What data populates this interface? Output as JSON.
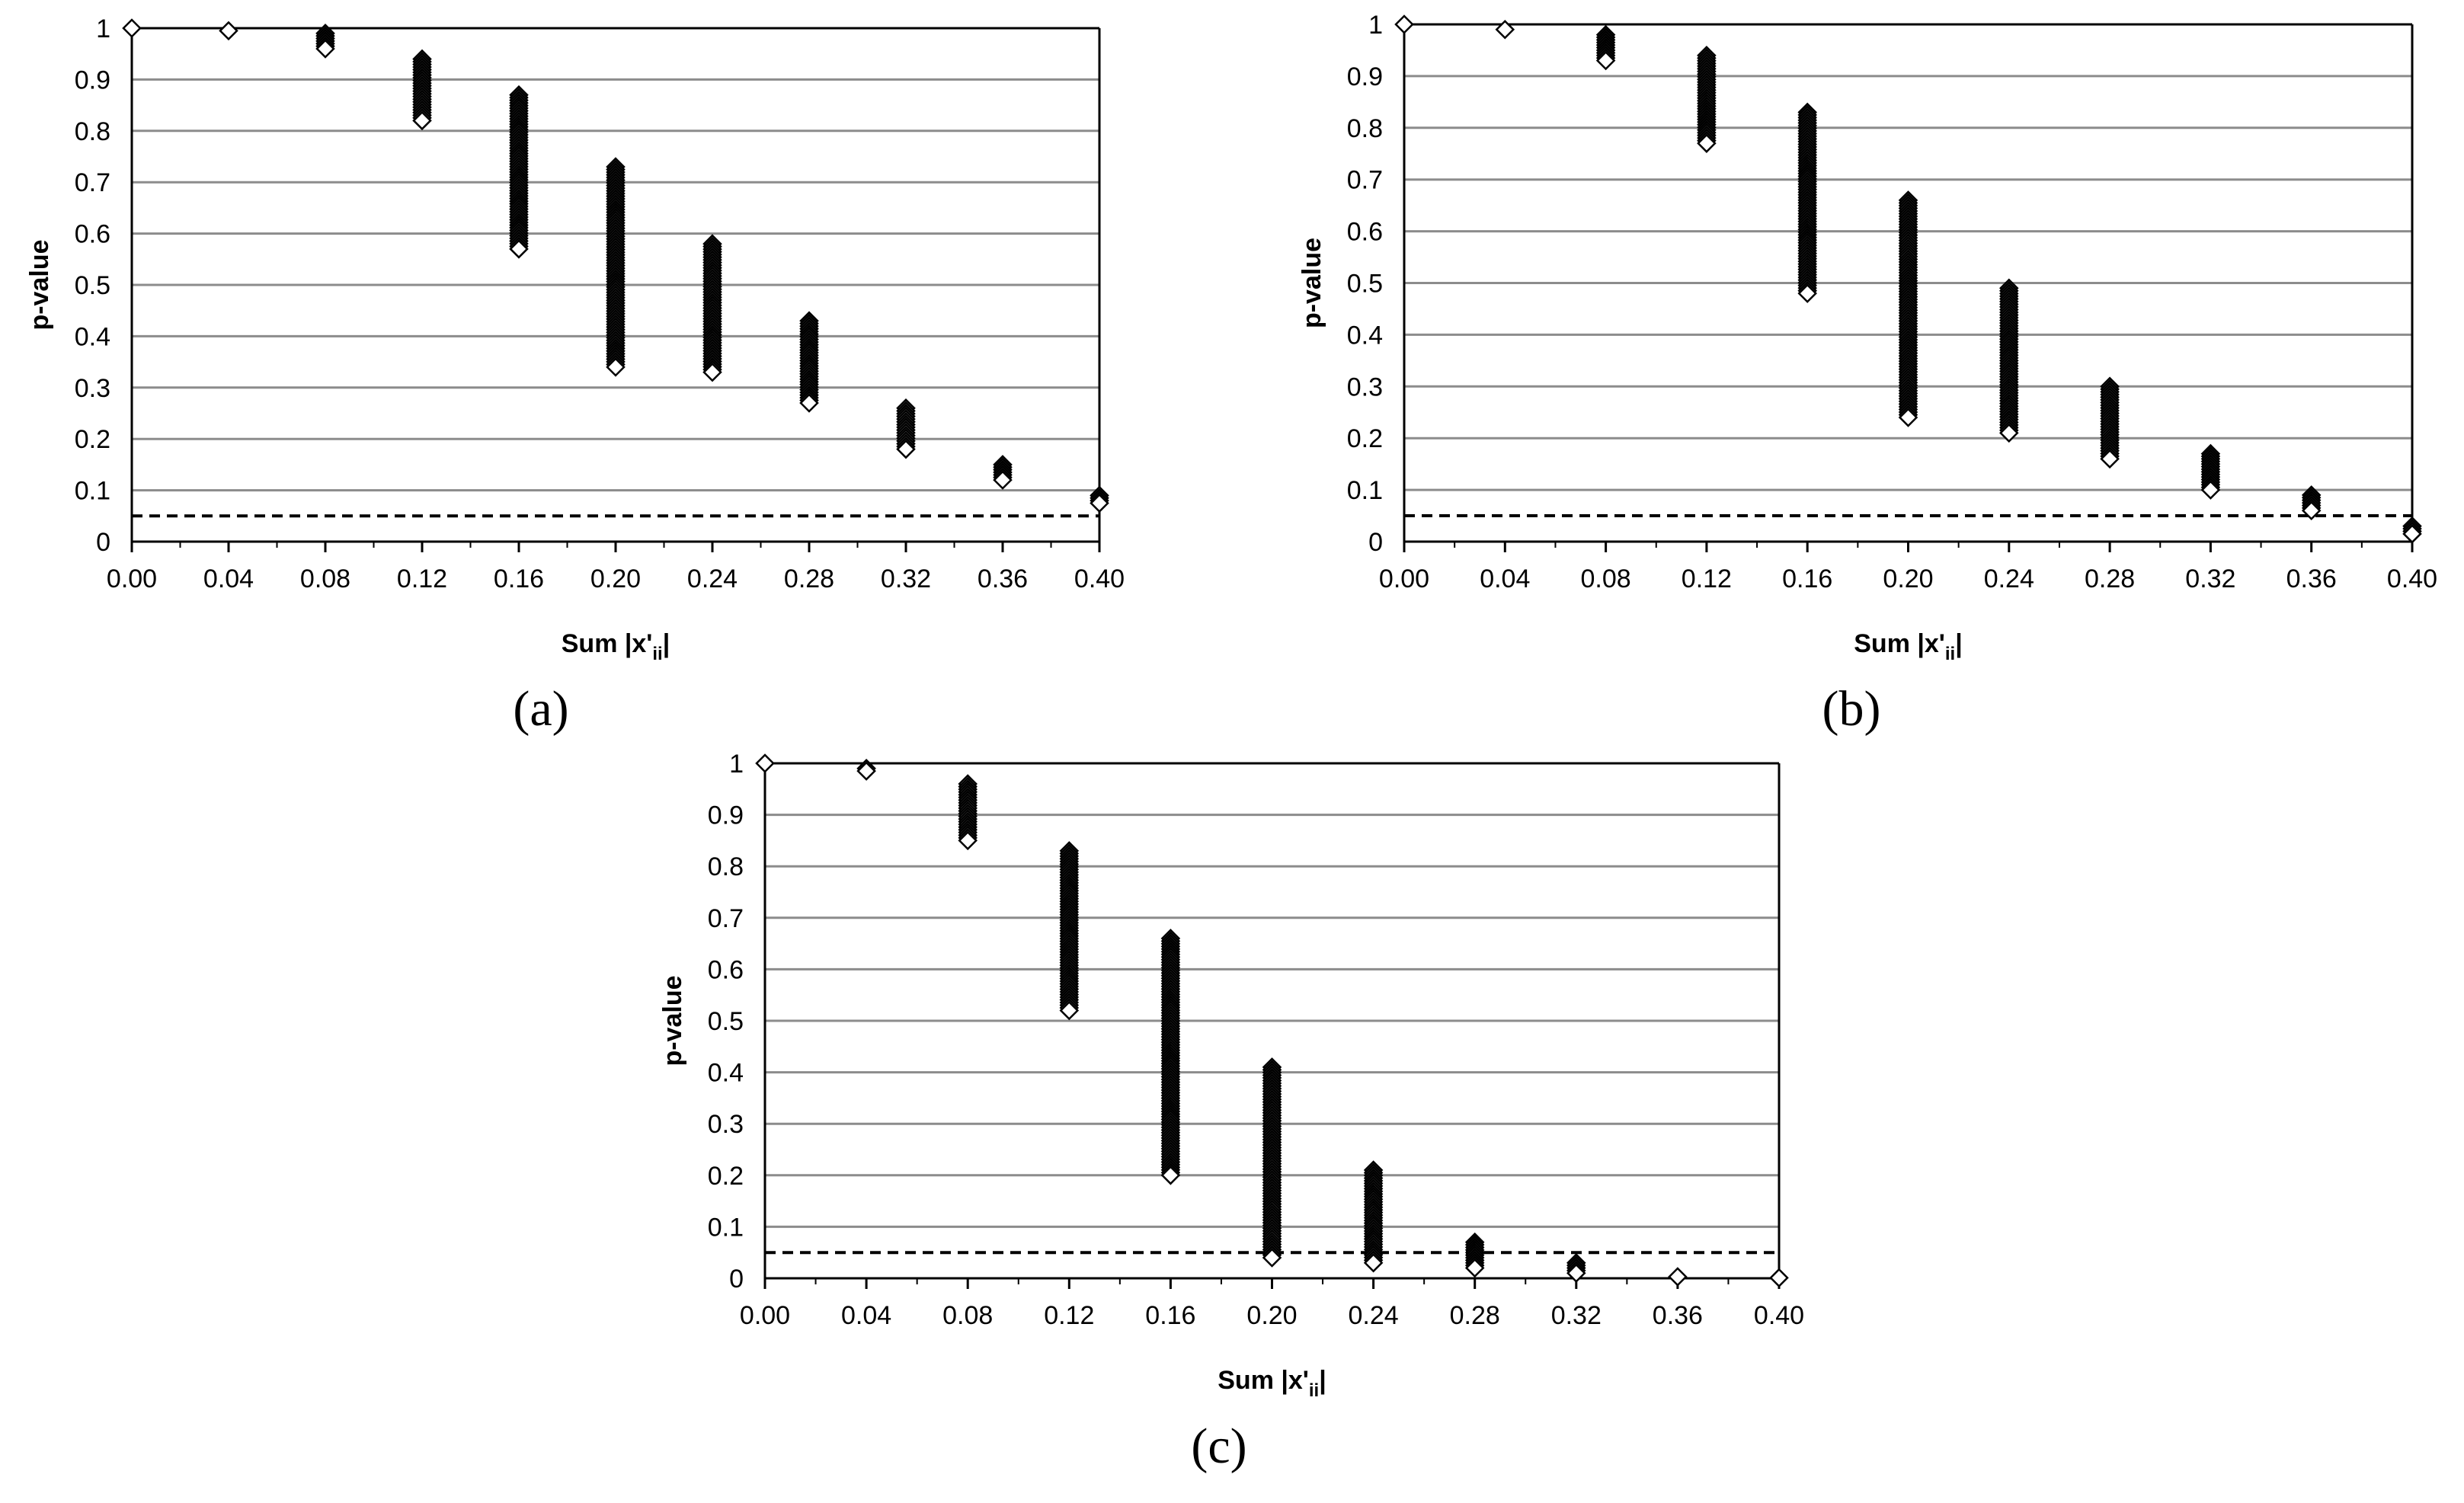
{
  "figure": {
    "panel_labels": [
      "(a)",
      "(b)",
      "(c)"
    ]
  },
  "chart_data": [
    {
      "type": "scatter",
      "panel": "(a)",
      "xlabel": "Sum |x'ii|",
      "xlabel_main": "Sum |x'",
      "xlabel_sub": "ii",
      "xlabel_end": "|",
      "ylabel": "p-value",
      "xlim": [
        0,
        0.4
      ],
      "ylim": [
        0,
        1
      ],
      "x_ticks": [
        "0.00",
        "0.04",
        "0.08",
        "0.12",
        "0.16",
        "0.20",
        "0.24",
        "0.28",
        "0.32",
        "0.36",
        "0.40"
      ],
      "y_ticks": [
        "0",
        "0.1",
        "0.2",
        "0.3",
        "0.4",
        "0.5",
        "0.6",
        "0.7",
        "0.8",
        "0.9",
        "1"
      ],
      "grid": true,
      "reference_line": 0.05,
      "points": [
        {
          "x": 0.0,
          "min": 1.0,
          "max": 1.0
        },
        {
          "x": 0.04,
          "min": 0.995,
          "max": 0.995
        },
        {
          "x": 0.08,
          "min": 0.96,
          "max": 0.99
        },
        {
          "x": 0.12,
          "min": 0.82,
          "max": 0.94
        },
        {
          "x": 0.16,
          "min": 0.57,
          "max": 0.87
        },
        {
          "x": 0.2,
          "min": 0.34,
          "max": 0.73
        },
        {
          "x": 0.24,
          "min": 0.33,
          "max": 0.58
        },
        {
          "x": 0.28,
          "min": 0.27,
          "max": 0.43
        },
        {
          "x": 0.32,
          "min": 0.18,
          "max": 0.26
        },
        {
          "x": 0.36,
          "min": 0.12,
          "max": 0.15
        },
        {
          "x": 0.4,
          "min": 0.075,
          "max": 0.09
        }
      ]
    },
    {
      "type": "scatter",
      "panel": "(b)",
      "xlabel": "Sum |x'ii|",
      "xlabel_main": "Sum |x'",
      "xlabel_sub": "ii",
      "xlabel_end": "|",
      "ylabel": "p-value",
      "xlim": [
        0,
        0.4
      ],
      "ylim": [
        0,
        1
      ],
      "x_ticks": [
        "0.00",
        "0.04",
        "0.08",
        "0.12",
        "0.16",
        "0.20",
        "0.24",
        "0.28",
        "0.32",
        "0.36",
        "0.40"
      ],
      "y_ticks": [
        "0",
        "0.1",
        "0.2",
        "0.3",
        "0.4",
        "0.5",
        "0.6",
        "0.7",
        "0.8",
        "0.9",
        "1"
      ],
      "grid": true,
      "reference_line": 0.05,
      "points": [
        {
          "x": 0.0,
          "min": 1.0,
          "max": 1.0
        },
        {
          "x": 0.04,
          "min": 0.99,
          "max": 0.99
        },
        {
          "x": 0.08,
          "min": 0.93,
          "max": 0.98
        },
        {
          "x": 0.12,
          "min": 0.77,
          "max": 0.94
        },
        {
          "x": 0.16,
          "min": 0.48,
          "max": 0.83
        },
        {
          "x": 0.2,
          "min": 0.24,
          "max": 0.66
        },
        {
          "x": 0.24,
          "min": 0.21,
          "max": 0.49
        },
        {
          "x": 0.28,
          "min": 0.16,
          "max": 0.3
        },
        {
          "x": 0.32,
          "min": 0.1,
          "max": 0.17
        },
        {
          "x": 0.36,
          "min": 0.06,
          "max": 0.09
        },
        {
          "x": 0.4,
          "min": 0.015,
          "max": 0.03
        }
      ]
    },
    {
      "type": "scatter",
      "panel": "(c)",
      "xlabel": "Sum |x'ii|",
      "xlabel_main": "Sum |x'",
      "xlabel_sub": "ii",
      "xlabel_end": "|",
      "ylabel": "p-value",
      "xlim": [
        0,
        0.4
      ],
      "ylim": [
        0,
        1
      ],
      "x_ticks": [
        "0.00",
        "0.04",
        "0.08",
        "0.12",
        "0.16",
        "0.20",
        "0.24",
        "0.28",
        "0.32",
        "0.36",
        "0.40"
      ],
      "y_ticks": [
        "0",
        "0.1",
        "0.2",
        "0.3",
        "0.4",
        "0.5",
        "0.6",
        "0.7",
        "0.8",
        "0.9",
        "1"
      ],
      "grid": true,
      "reference_line": 0.05,
      "points": [
        {
          "x": 0.0,
          "min": 1.0,
          "max": 1.0
        },
        {
          "x": 0.04,
          "min": 0.985,
          "max": 0.99
        },
        {
          "x": 0.08,
          "min": 0.85,
          "max": 0.96
        },
        {
          "x": 0.12,
          "min": 0.52,
          "max": 0.83
        },
        {
          "x": 0.16,
          "min": 0.2,
          "max": 0.66
        },
        {
          "x": 0.2,
          "min": 0.04,
          "max": 0.41
        },
        {
          "x": 0.24,
          "min": 0.03,
          "max": 0.21
        },
        {
          "x": 0.28,
          "min": 0.02,
          "max": 0.07
        },
        {
          "x": 0.32,
          "min": 0.01,
          "max": 0.03
        },
        {
          "x": 0.36,
          "min": 0.003,
          "max": 0.003
        },
        {
          "x": 0.4,
          "min": 0.001,
          "max": 0.001
        }
      ]
    }
  ]
}
